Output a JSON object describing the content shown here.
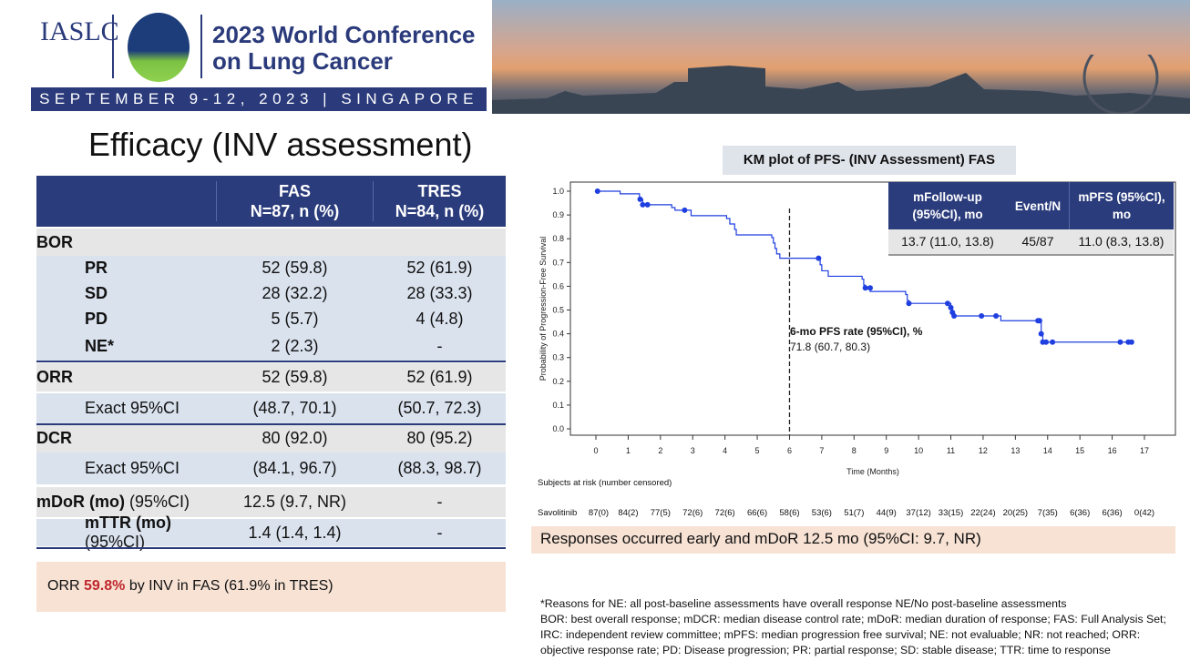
{
  "header": {
    "org": "IASLC",
    "conference_line1": "2023 World Conference",
    "conference_line2": "on Lung Cancer",
    "dates": "SEPTEMBER 9-12, 2023 | SINGAPORE"
  },
  "slide_title": "Efficacy (INV assessment)",
  "table": {
    "headers": [
      "",
      "FAS",
      "N=87, n (%)",
      "TRES",
      "N=84, n (%)"
    ],
    "rows": [
      {
        "label": "BOR",
        "fas": "",
        "tres": ""
      },
      {
        "label": "PR",
        "fas": "52 (59.8)",
        "tres": "52 (61.9)"
      },
      {
        "label": "SD",
        "fas": "28 (32.2)",
        "tres": "28 (33.3)"
      },
      {
        "label": "PD",
        "fas": "5 (5.7)",
        "tres": "4 (4.8)"
      },
      {
        "label": "NE*",
        "fas": "2 (2.3)",
        "tres": "-"
      },
      {
        "label": "ORR",
        "fas": "52 (59.8)",
        "tres": "52 (61.9)"
      },
      {
        "label": "Exact 95%CI",
        "fas": "(48.7, 70.1)",
        "tres": "(50.7, 72.3)"
      },
      {
        "label": "DCR",
        "fas": "80 (92.0)",
        "tres": "80 (95.2)"
      },
      {
        "label": "Exact 95%CI",
        "fas": "(84.1, 96.7)",
        "tres": "(88.3, 98.7)"
      },
      {
        "label": "mDoR (mo)",
        "label_suffix": " (95%CI)",
        "fas": "12.5 (9.7, NR)",
        "tres": "-"
      },
      {
        "label": "mTTR (mo)",
        "label_suffix": " (95%CI)",
        "fas": "1.4 (1.4, 1.4)",
        "tres": "-"
      }
    ]
  },
  "orr_note": {
    "pre": "ORR ",
    "highlight": "59.8%",
    "post": " by INV in FAS (61.9% in TRES)",
    "highlight_color": "#c0282d"
  },
  "km_title": "KM plot of PFS- (INV Assessment) FAS",
  "inset": {
    "headers": [
      "mFollow-up (95%CI), mo",
      "Event/N",
      "mPFS (95%CI), mo"
    ],
    "values": [
      "13.7 (11.0, 13.8)",
      "45/87",
      "11.0 (8.3, 13.8)"
    ]
  },
  "chart_data": {
    "type": "line",
    "subtype": "kaplan-meier",
    "xlabel": "Time (Months)",
    "ylabel": "Probability of Progression-Free Survival",
    "xlim": [
      0,
      17
    ],
    "ylim": [
      0,
      1
    ],
    "xticks": [
      "0",
      "1",
      "2",
      "3",
      "4",
      "5",
      "6",
      "7",
      "8",
      "9",
      "10",
      "11",
      "12",
      "13",
      "14",
      "15",
      "16",
      "17"
    ],
    "yticks": [
      "0.0",
      "0.1",
      "0.2",
      "0.3",
      "0.4",
      "0.5",
      "0.6",
      "0.7",
      "0.8",
      "0.9",
      "1.0"
    ],
    "line_color": "#1f3fe0",
    "steps": [
      [
        0,
        1.0
      ],
      [
        0.75,
        0.989
      ],
      [
        1.35,
        0.966
      ],
      [
        1.45,
        0.943
      ],
      [
        2.35,
        0.931
      ],
      [
        2.45,
        0.92
      ],
      [
        2.95,
        0.897
      ],
      [
        4.05,
        0.885
      ],
      [
        4.15,
        0.862
      ],
      [
        4.3,
        0.839
      ],
      [
        4.35,
        0.816
      ],
      [
        5.45,
        0.805
      ],
      [
        5.5,
        0.782
      ],
      [
        5.55,
        0.759
      ],
      [
        5.6,
        0.736
      ],
      [
        5.7,
        0.718
      ],
      [
        6.95,
        0.69
      ],
      [
        7.0,
        0.665
      ],
      [
        7.2,
        0.642
      ],
      [
        8.25,
        0.63
      ],
      [
        8.3,
        0.605
      ],
      [
        8.35,
        0.593
      ],
      [
        8.5,
        0.578
      ],
      [
        9.6,
        0.565
      ],
      [
        9.65,
        0.54
      ],
      [
        9.7,
        0.528
      ],
      [
        11.0,
        0.51
      ],
      [
        11.05,
        0.49
      ],
      [
        11.1,
        0.475
      ],
      [
        12.55,
        0.455
      ],
      [
        13.8,
        0.4
      ],
      [
        13.85,
        0.365
      ],
      [
        16.6,
        0.365
      ]
    ],
    "censored": [
      [
        0.05,
        1.0
      ],
      [
        1.37,
        0.966
      ],
      [
        1.45,
        0.943
      ],
      [
        1.6,
        0.943
      ],
      [
        2.75,
        0.92
      ],
      [
        6.9,
        0.718
      ],
      [
        8.35,
        0.593
      ],
      [
        8.5,
        0.593
      ],
      [
        9.7,
        0.528
      ],
      [
        10.9,
        0.528
      ],
      [
        11.0,
        0.51
      ],
      [
        11.05,
        0.49
      ],
      [
        11.1,
        0.475
      ],
      [
        11.95,
        0.475
      ],
      [
        12.4,
        0.475
      ],
      [
        13.7,
        0.455
      ],
      [
        13.75,
        0.455
      ],
      [
        13.8,
        0.4
      ],
      [
        13.85,
        0.365
      ],
      [
        13.95,
        0.365
      ],
      [
        14.15,
        0.365
      ],
      [
        16.25,
        0.365
      ],
      [
        16.5,
        0.365
      ],
      [
        16.6,
        0.365
      ]
    ],
    "reference_line_x": 6,
    "annotation": {
      "title": "6-mo PFS rate (95%CI), %",
      "value": "71.8 (60.7, 80.3)"
    },
    "at_risk": {
      "title": "Subjects at risk (number censored)",
      "group": "Savolitinib",
      "values": [
        "87(0)",
        "84(2)",
        "77(5)",
        "72(6)",
        "72(6)",
        "66(6)",
        "58(6)",
        "53(6)",
        "51(7)",
        "44(9)",
        "37(12)",
        "33(15)",
        "22(24)",
        "20(25)",
        "7(35)",
        "6(36)",
        "6(36)",
        "0(42)"
      ]
    }
  },
  "responses_note": "Responses occurred early and mDoR 12.5 mo (95%CI: 9.7, NR)",
  "footnotes": [
    "*Reasons for NE: all post-baseline assessments have overall response NE/No post-baseline assessments",
    "BOR: best overall response; mDCR: median disease control rate; mDoR: median duration of response; FAS: Full Analysis Set; IRC: independent review committee; mPFS: median progression free survival; NE: not evaluable; NR: not reached; ORR: objective response rate; PD: Disease progression; PR: partial response; SD: stable disease; TTR: time to response"
  ]
}
